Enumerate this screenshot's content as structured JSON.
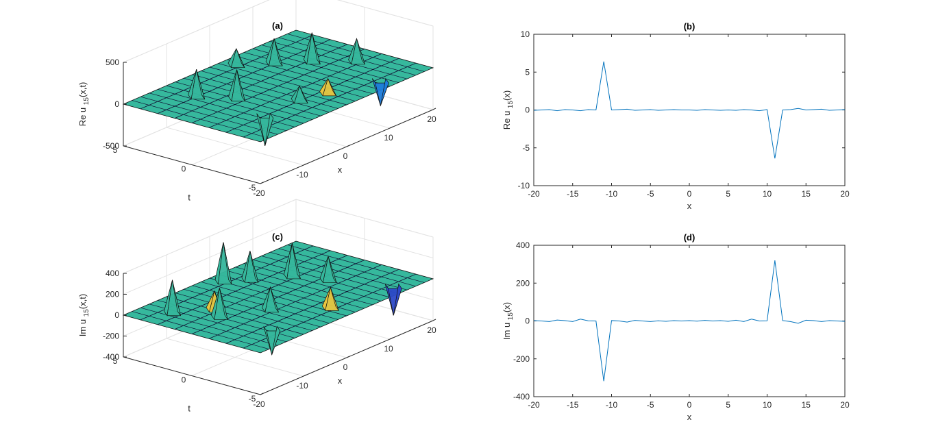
{
  "chart_data": [
    {
      "id": "a",
      "type": "surface",
      "title": "(a)",
      "zlabel_main": "Re u",
      "zlabel_sub": "15",
      "zlabel_rest": "(x,t)",
      "xlabel": "x",
      "ylabel": "t",
      "xlim": [
        -20,
        20
      ],
      "ylim": [
        -5,
        5
      ],
      "zlim": [
        -500,
        500
      ],
      "xticks": [
        -20,
        -10,
        0,
        10,
        20
      ],
      "yticks": [
        -5,
        0,
        5
      ],
      "zticks": [
        -500,
        0,
        500
      ],
      "grid": true,
      "peaks": [
        {
          "x": -11,
          "t": 2.5,
          "z": 330,
          "color": "#35b79c"
        },
        {
          "x": -8,
          "t": 0.5,
          "z": 350,
          "color": "#35b79c"
        },
        {
          "x": -3,
          "t": -2.5,
          "z": 180,
          "color": "#35b79c"
        },
        {
          "x": 3,
          "t": 4,
          "z": 200,
          "color": "#35b79c"
        },
        {
          "x": 7,
          "t": 2.5,
          "z": 300,
          "color": "#35b79c"
        },
        {
          "x": 11,
          "t": 1,
          "z": 350,
          "color": "#35b79c"
        },
        {
          "x": 15,
          "t": -1,
          "z": 280,
          "color": "#35b79c"
        },
        {
          "x": -11,
          "t": -2.5,
          "z": -360,
          "color": "#35b79c"
        },
        {
          "x": 11,
          "t": -4,
          "z": -300,
          "color": "#1c7cdc"
        },
        {
          "x": 2,
          "t": -3,
          "z": 180,
          "color": "#e8c540"
        }
      ]
    },
    {
      "id": "b",
      "type": "line",
      "title": "(b)",
      "ylabel_main": "Re u",
      "ylabel_sub": "15",
      "ylabel_rest": "(x)",
      "xlabel": "x",
      "xlim": [
        -20,
        20
      ],
      "ylim": [
        -10,
        10
      ],
      "xticks": [
        -20,
        -15,
        -10,
        -5,
        0,
        5,
        10,
        15,
        20
      ],
      "yticks": [
        -10,
        -5,
        0,
        5,
        10
      ],
      "color": "#0072bd",
      "x": [
        -20,
        -19,
        -18,
        -17,
        -16,
        -15,
        -14,
        -13,
        -12,
        -11,
        -10,
        -9,
        -8,
        -7,
        -6,
        -5,
        -4,
        -3,
        -2,
        -1,
        0,
        1,
        2,
        3,
        4,
        5,
        6,
        7,
        8,
        9,
        10,
        11,
        12,
        13,
        14,
        15,
        16,
        17,
        18,
        19,
        20
      ],
      "y": [
        -0.05,
        0.0,
        0.05,
        -0.1,
        0.05,
        0.0,
        -0.1,
        0.05,
        0.0,
        6.4,
        0.0,
        0.05,
        0.1,
        -0.05,
        0.0,
        0.05,
        -0.05,
        0.0,
        0.05,
        0.0,
        0.0,
        -0.05,
        0.05,
        0.0,
        -0.05,
        0.0,
        -0.05,
        0.05,
        0.0,
        -0.1,
        0.05,
        -6.4,
        0.0,
        0.05,
        0.2,
        0.0,
        0.05,
        0.1,
        -0.05,
        0.0,
        0.05
      ]
    },
    {
      "id": "c",
      "type": "surface",
      "title": "(c)",
      "zlabel_main": "Im u",
      "zlabel_sub": "15",
      "zlabel_rest": "(x,t)",
      "xlabel": "x",
      "ylabel": "t",
      "xlim": [
        -20,
        20
      ],
      "ylim": [
        -5,
        5
      ],
      "zlim": [
        -400,
        400
      ],
      "xticks": [
        -20,
        -10,
        0,
        10,
        20
      ],
      "yticks": [
        -5,
        0,
        5
      ],
      "zticks": [
        -400,
        -200,
        0,
        200,
        400
      ],
      "grid": true,
      "peaks": [
        {
          "x": -15,
          "t": 3,
          "z": 320,
          "color": "#35b79c"
        },
        {
          "x": -12,
          "t": 0.5,
          "z": 280,
          "color": "#35b79c"
        },
        {
          "x": -10,
          "t": 1.5,
          "z": 180,
          "color": "#e8c540"
        },
        {
          "x": -5,
          "t": -1,
          "z": 220,
          "color": "#35b79c"
        },
        {
          "x": 0,
          "t": 4,
          "z": 380,
          "color": "#35b79c"
        },
        {
          "x": 3,
          "t": 3,
          "z": 280,
          "color": "#35b79c"
        },
        {
          "x": 8,
          "t": 1.5,
          "z": 320,
          "color": "#35b79c"
        },
        {
          "x": 10,
          "t": -0.5,
          "z": 230,
          "color": "#35b79c"
        },
        {
          "x": -11,
          "t": -3,
          "z": -250,
          "color": "#35b79c"
        },
        {
          "x": 1,
          "t": -3.5,
          "z": 200,
          "color": "#e8c540"
        },
        {
          "x": 14,
          "t": -4,
          "z": -280,
          "color": "#2c48c8"
        }
      ]
    },
    {
      "id": "d",
      "type": "line",
      "title": "(d)",
      "ylabel_main": "Im u",
      "ylabel_sub": "15",
      "ylabel_rest": "(x)",
      "xlabel": "x",
      "xlim": [
        -20,
        20
      ],
      "ylim": [
        -400,
        400
      ],
      "xticks": [
        -20,
        -15,
        -10,
        -5,
        0,
        5,
        10,
        15,
        20
      ],
      "yticks": [
        -400,
        -200,
        0,
        200,
        400
      ],
      "color": "#0072bd",
      "x": [
        -20,
        -19,
        -18,
        -17,
        -16,
        -15,
        -14,
        -13,
        -12,
        -11,
        -10,
        -9,
        -8,
        -7,
        -6,
        -5,
        -4,
        -3,
        -2,
        -1,
        0,
        1,
        2,
        3,
        4,
        5,
        6,
        7,
        8,
        9,
        10,
        11,
        12,
        13,
        14,
        15,
        16,
        17,
        18,
        19,
        20
      ],
      "y": [
        2,
        0,
        -3,
        5,
        2,
        -3,
        10,
        1,
        0,
        -318,
        2,
        0,
        -6,
        3,
        0,
        -3,
        1,
        -2,
        2,
        0,
        2,
        -1,
        3,
        0,
        2,
        -2,
        4,
        -3,
        10,
        0,
        1,
        320,
        2,
        -3,
        -12,
        4,
        2,
        -3,
        2,
        0,
        -2
      ]
    }
  ]
}
